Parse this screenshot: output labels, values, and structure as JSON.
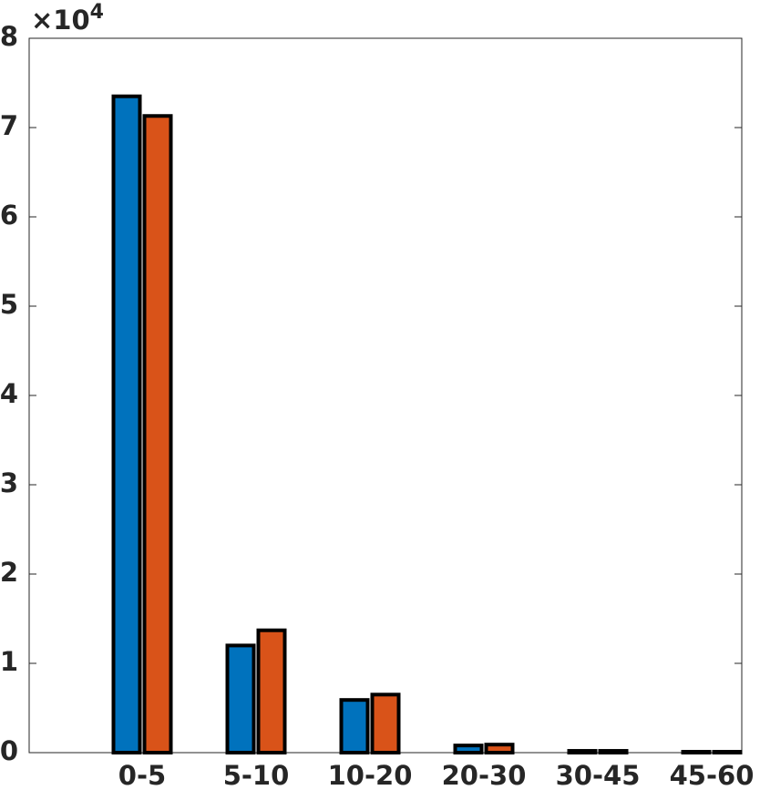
{
  "chart_data": {
    "type": "bar",
    "y_multiplier": {
      "base": "×10",
      "exponent": "4"
    },
    "categories": [
      "0-5",
      "5-10",
      "10-20",
      "20-30",
      "30-45",
      "45-60"
    ],
    "series": [
      {
        "color": "#0072BD",
        "values": [
          7.35,
          1.2,
          0.59,
          0.08,
          0.02,
          0.01
        ]
      },
      {
        "color": "#D95319",
        "values": [
          7.13,
          1.37,
          0.65,
          0.09,
          0.02,
          0.01
        ]
      }
    ],
    "ylim": [
      0,
      8
    ],
    "yticks": [
      0,
      1,
      2,
      3,
      4,
      5,
      6,
      7,
      8
    ],
    "grid": false
  }
}
